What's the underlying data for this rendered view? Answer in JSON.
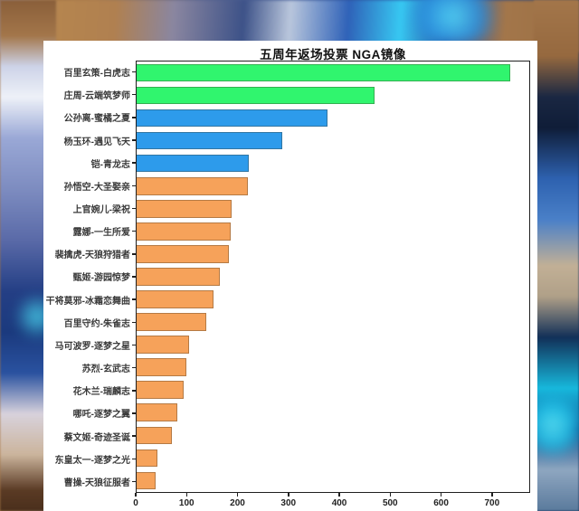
{
  "panel": {
    "background": "#ffffff"
  },
  "chart_data": {
    "type": "bar",
    "orientation": "horizontal",
    "title": "五周年返场投票 NGA镜像",
    "xlabel": "",
    "ylabel": "",
    "xlim": [
      0,
      775
    ],
    "x_ticks": [
      0,
      100,
      200,
      300,
      400,
      500,
      600,
      700
    ],
    "grid": false,
    "legend": null,
    "categories": [
      "百里玄策-白虎志",
      "庄周-云端筑梦师",
      "公孙离-蜜橘之夏",
      "杨玉环-遇见飞天",
      "铠-青龙志",
      "孙悟空-大圣娶亲",
      "上官婉儿-梁祝",
      "露娜-一生所爱",
      "裴擒虎-天狼狩猎者",
      "甄姬-游园惊梦",
      "干将莫邪-冰霜恋舞曲",
      "百里守约-朱雀志",
      "马可波罗-逐梦之星",
      "苏烈-玄武志",
      "花木兰-瑞麟志",
      "哪吒-逐梦之翼",
      "蔡文姬-奇迹圣诞",
      "东皇太一-逐梦之光",
      "曹操-天狼征服者"
    ],
    "values": [
      737,
      470,
      377,
      287,
      221,
      220,
      187,
      185,
      182,
      164,
      152,
      137,
      103,
      98,
      92,
      80,
      70,
      41,
      37
    ],
    "bar_colors": [
      "#30f56e",
      "#30f56e",
      "#2d9beb",
      "#2d9beb",
      "#2d9beb",
      "#f6a25a",
      "#f6a25a",
      "#f6a25a",
      "#f6a25a",
      "#f6a25a",
      "#f6a25a",
      "#f6a25a",
      "#f6a25a",
      "#f6a25a",
      "#f6a25a",
      "#f6a25a",
      "#f6a25a",
      "#f6a25a",
      "#f6a25a"
    ],
    "color_legend": {
      "green": "#30f56e",
      "blue": "#2d9beb",
      "orange": "#f6a25a"
    }
  }
}
